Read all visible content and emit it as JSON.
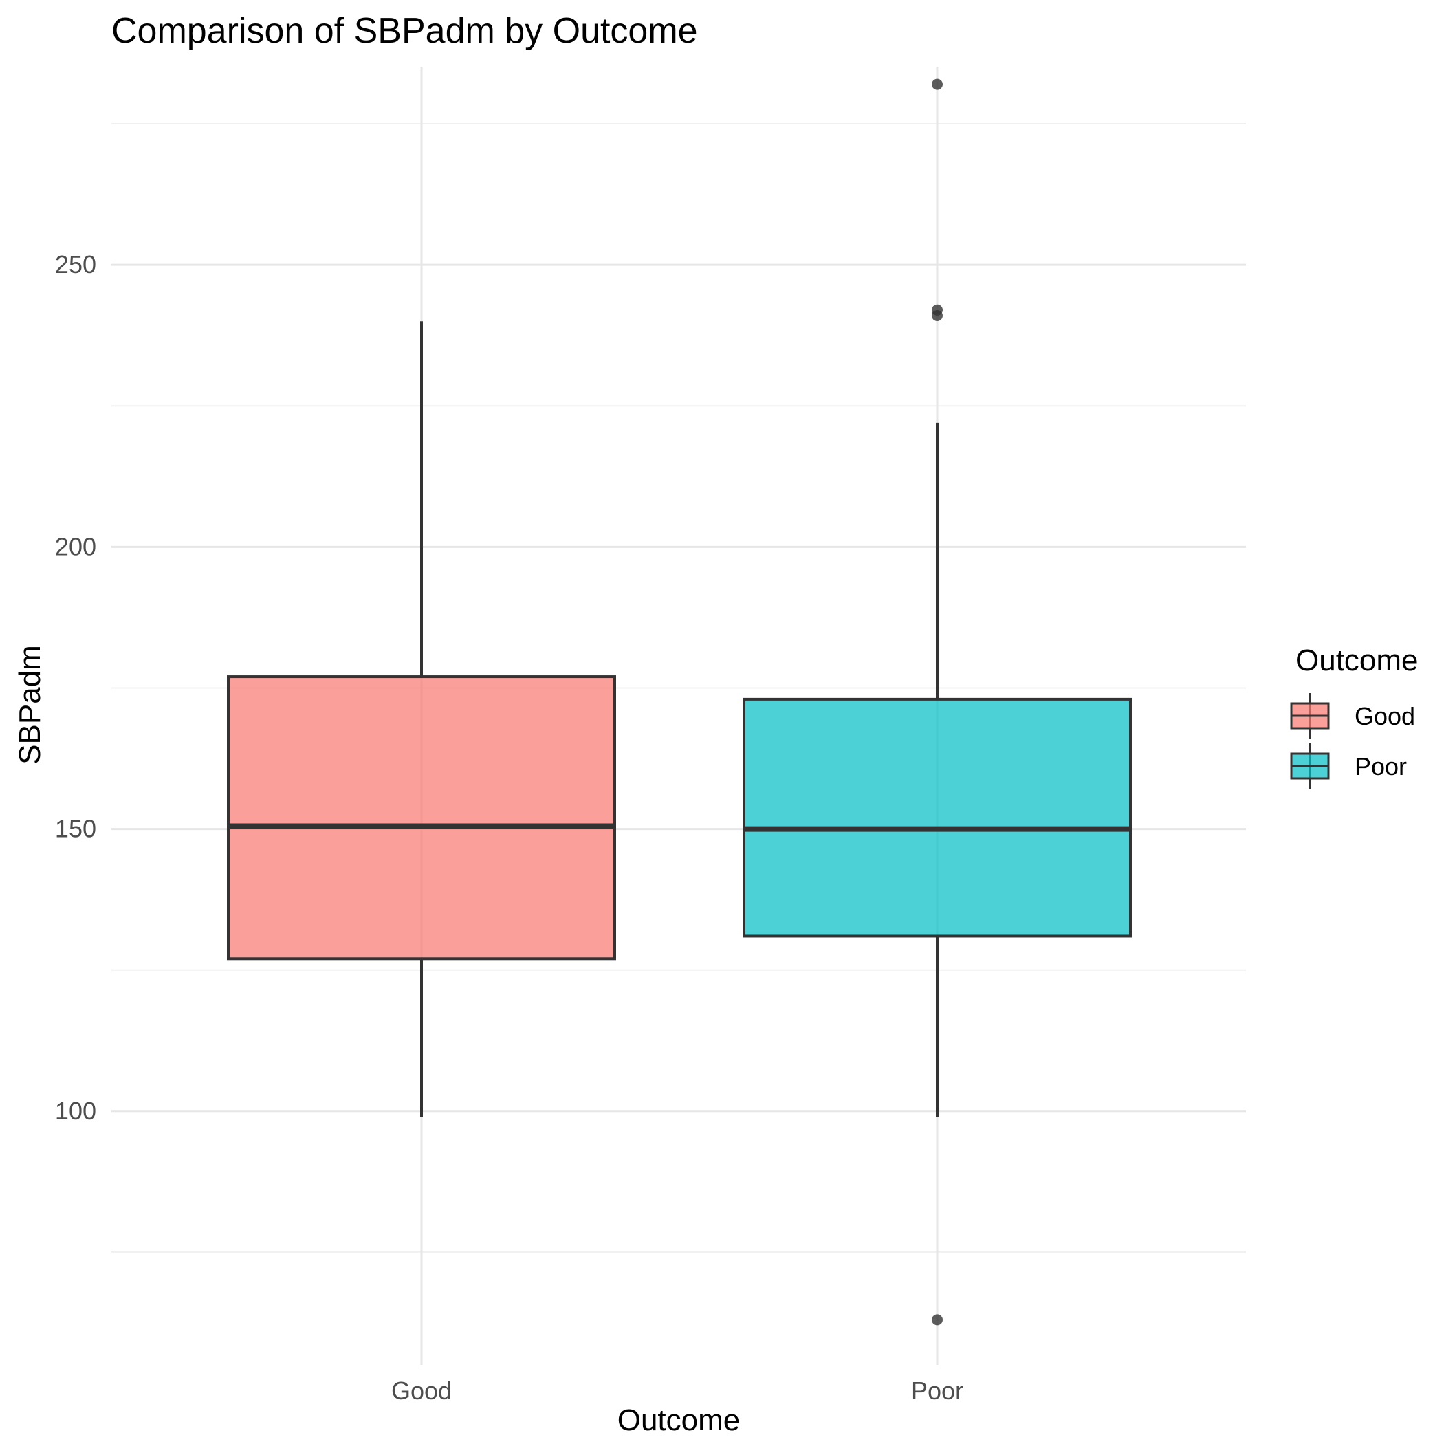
{
  "chart_data": {
    "type": "boxplot",
    "title": "Comparison of SBPadm by Outcome",
    "xlabel": "Outcome",
    "ylabel": "SBPadm",
    "categories": [
      "Good",
      "Poor"
    ],
    "ylim": [
      55,
      285
    ],
    "yticks": [
      100,
      150,
      200,
      250
    ],
    "grid": true,
    "boxes": [
      {
        "category": "Good",
        "min": 99,
        "q1": 127,
        "median": 150.5,
        "q3": 177,
        "max": 240,
        "outliers": [],
        "color": "#F8766D"
      },
      {
        "category": "Poor",
        "min": 99,
        "q1": 131,
        "median": 150,
        "q3": 173,
        "max": 222,
        "outliers": [
          282,
          242,
          241,
          63
        ],
        "color": "#00BFC4"
      }
    ],
    "legend": {
      "title": "Outcome",
      "position": "right",
      "entries": [
        "Good",
        "Poor"
      ]
    }
  }
}
